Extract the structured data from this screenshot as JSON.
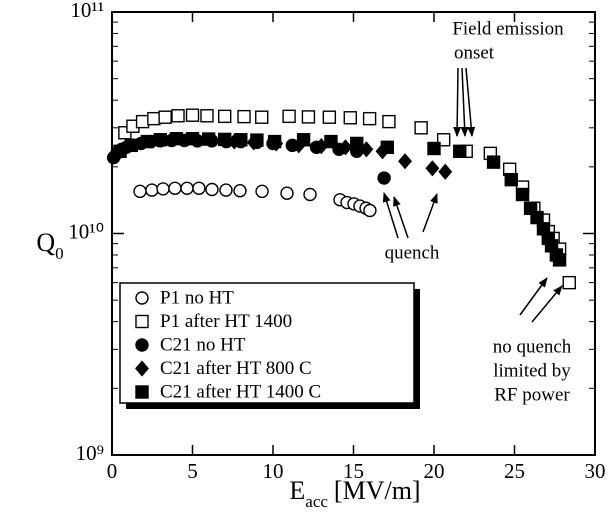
{
  "chart_data": {
    "type": "scatter",
    "xlabel": "E",
    "xlabel_sub": "acc",
    "xlabel_unit": "[MV/m]",
    "ylabel": "Q",
    "ylabel_sub": "0",
    "xlim": [
      0,
      30
    ],
    "xticks": [
      0,
      5,
      10,
      15,
      20,
      25,
      30
    ],
    "ylim": [
      1000000000.0,
      100000000000.0
    ],
    "log_y": true,
    "yticks": [
      {
        "value": 1000000000.0,
        "label": "10⁹"
      },
      {
        "value": 10000000000.0,
        "label": "10¹⁰"
      },
      {
        "value": 100000000000.0,
        "label": "10¹¹"
      }
    ],
    "yminorticks": [
      2000000000.0,
      3000000000.0,
      4000000000.0,
      5000000000.0,
      6000000000.0,
      7000000000.0,
      8000000000.0,
      9000000000.0,
      20000000000.0,
      30000000000.0,
      40000000000.0,
      50000000000.0,
      60000000000.0,
      70000000000.0,
      80000000000.0,
      90000000000.0
    ],
    "legend": "lower left",
    "annotations": [
      "Field emission",
      "onset",
      "quench",
      "no quench",
      "limited by",
      "RF power"
    ],
    "series": [
      {
        "name": "P1 no HT",
        "marker": "circle-open",
        "color": "#000000",
        "x": [
          1.74,
          2.48,
          3.17,
          3.91,
          4.66,
          5.4,
          6.21,
          7.08,
          7.95,
          9.32,
          10.87,
          12.3,
          14.16,
          14.6,
          15.03,
          15.4,
          15.78,
          16.02
        ],
        "values": [
          15500000000.0,
          15700000000.0,
          15900000000.0,
          16000000000.0,
          16000000000.0,
          16000000000.0,
          15800000000.0,
          15700000000.0,
          15600000000.0,
          15500000000.0,
          15200000000.0,
          15000000000.0,
          14200000000.0,
          13800000000.0,
          13600000000.0,
          13300000000.0,
          13000000000.0,
          12700000000.0
        ]
      },
      {
        "name": "P1 after HT 1400",
        "marker": "square-open",
        "color": "#000000",
        "x": [
          0.8,
          1.3,
          1.9,
          2.6,
          3.3,
          4.1,
          5,
          5.9,
          7,
          8.2,
          9.3,
          11,
          12.2,
          13.5,
          14.8,
          16,
          17.2,
          19.2,
          20.6,
          22,
          23.5,
          24.7,
          25.5,
          26.2,
          26.8,
          27.1,
          27.4,
          27.8,
          28.4
        ],
        "values": [
          28500000000.0,
          30500000000.0,
          32000000000.0,
          33000000000.0,
          33500000000.0,
          34000000000.0,
          34200000000.0,
          34000000000.0,
          33800000000.0,
          33700000000.0,
          33500000000.0,
          33800000000.0,
          33600000000.0,
          33500000000.0,
          33300000000.0,
          33000000000.0,
          32000000000.0,
          30000000000.0,
          26500000000.0,
          23500000000.0,
          23000000000.0,
          19500000000.0,
          16200000000.0,
          13000000000.0,
          11500000000.0,
          10200000000.0,
          9500000000.0,
          8500000000.0,
          6000000000.0
        ]
      },
      {
        "name": "C21 no HT",
        "marker": "circle",
        "color": "#000000",
        "x": [
          0.1,
          0.3,
          0.6,
          0.9,
          1.3,
          1.8,
          2.4,
          3,
          3.7,
          4.5,
          5.3,
          6.2,
          7.1,
          8,
          9,
          10,
          11.2,
          12.7,
          14.1,
          15.2,
          16.9
        ],
        "values": [
          22000000000.0,
          23000000000.0,
          24000000000.0,
          24500000000.0,
          25000000000.0,
          25500000000.0,
          26000000000.0,
          26200000000.0,
          26300000000.0,
          26300000000.0,
          26200000000.0,
          26200000000.0,
          26000000000.0,
          26000000000.0,
          25800000000.0,
          25500000000.0,
          25000000000.0,
          24500000000.0,
          24000000000.0,
          23500000000.0,
          17800000000.0
        ]
      },
      {
        "name": "C21 after HT 800 C",
        "marker": "diamond",
        "color": "#000000",
        "x": [
          7.6,
          8.8,
          10.2,
          11.6,
          13,
          14.5,
          15.8,
          16.8,
          18.2,
          19.9,
          20.7
        ],
        "values": [
          26000000000.0,
          25800000000.0,
          25500000000.0,
          25000000000.0,
          24800000000.0,
          24500000000.0,
          24000000000.0,
          23500000000.0,
          21200000000.0,
          19700000000.0,
          19000000000.0
        ]
      },
      {
        "name": "C21 after HT 1400 C",
        "marker": "square",
        "color": "#000000",
        "x": [
          0.5,
          1.2,
          2.2,
          3,
          4,
          5,
          6,
          7,
          8,
          9,
          10.1,
          11.9,
          13.6,
          15.2,
          17.1,
          20,
          21.6,
          23.7,
          24.8,
          25.5,
          26,
          26.4,
          26.8,
          27.1,
          27.3,
          27.6,
          27.8
        ],
        "values": [
          23500000000.0,
          25000000000.0,
          26000000000.0,
          26500000000.0,
          26800000000.0,
          26800000000.0,
          26700000000.0,
          26600000000.0,
          26500000000.0,
          26400000000.0,
          26000000000.0,
          26500000000.0,
          26000000000.0,
          25500000000.0,
          24500000000.0,
          24200000000.0,
          23500000000.0,
          21000000000.0,
          17500000000.0,
          15000000000.0,
          13000000000.0,
          11800000000.0,
          10500000000.0,
          9500000000.0,
          8800000000.0,
          8000000000.0,
          7600000000.0
        ]
      }
    ]
  }
}
